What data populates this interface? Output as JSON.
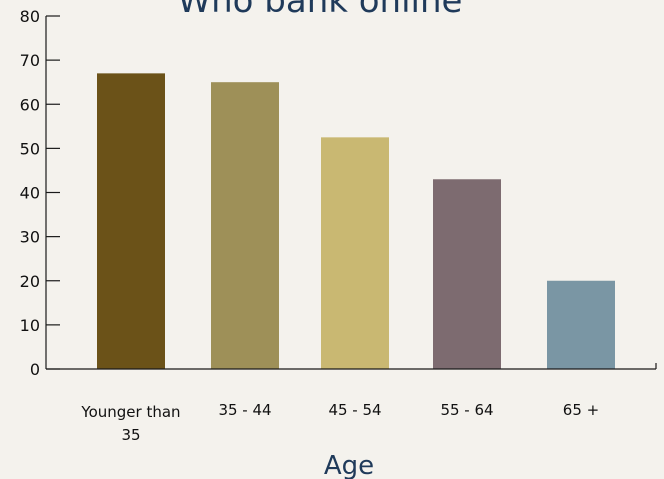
{
  "chart_data": {
    "type": "bar",
    "title": "Who bank online",
    "xlabel": "Age",
    "ylabel": "",
    "categories": [
      "Younger than 35",
      "35 - 44",
      "45 - 54",
      "55 - 64",
      "65 +"
    ],
    "values": [
      67,
      65,
      52.5,
      43,
      20
    ],
    "ylim": [
      0,
      80
    ],
    "yticks": [
      0,
      10,
      20,
      30,
      40,
      50,
      60,
      70,
      80
    ],
    "colors": [
      "#6b5218",
      "#9e9058",
      "#c9b872",
      "#7d6b70",
      "#7a96a4"
    ],
    "grid": false,
    "legend": "none"
  },
  "colors": {
    "background": "#f4f2ed",
    "title": "#1f3a5a"
  }
}
